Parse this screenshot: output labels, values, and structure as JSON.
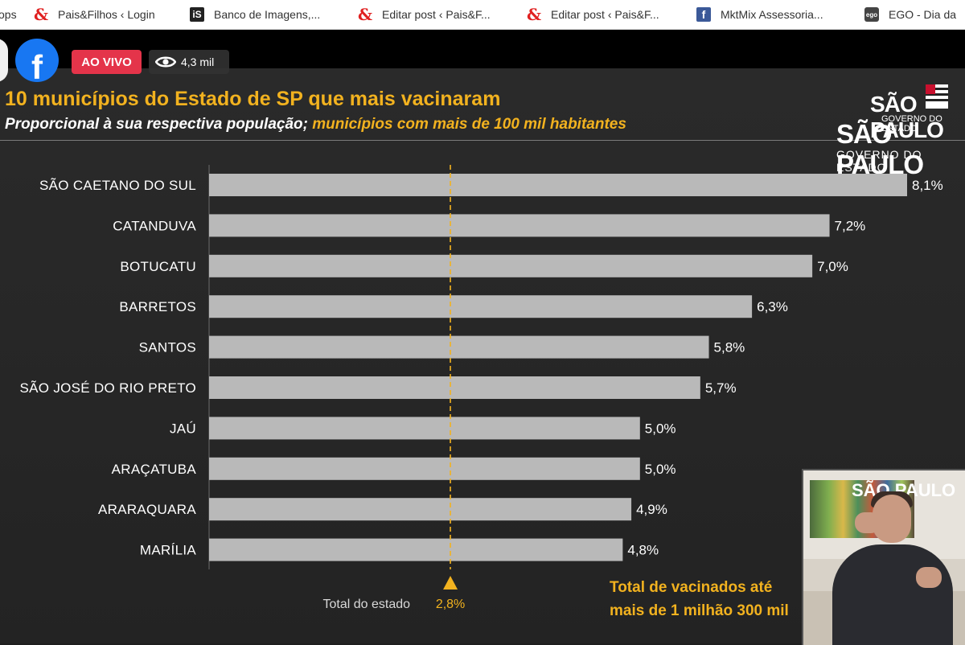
{
  "bookmarks": [
    {
      "label": "ops",
      "icon": "none"
    },
    {
      "label": "Pais&Filhos ‹ Login",
      "icon": "pais-filhos-icon"
    },
    {
      "label": "Banco de Imagens,...",
      "icon": "istock-icon"
    },
    {
      "label": "Editar post ‹ Pais&F...",
      "icon": "pais-filhos-icon"
    },
    {
      "label": "Editar post ‹ Pais&F...",
      "icon": "pais-filhos-icon"
    },
    {
      "label": "MktMix Assessoria...",
      "icon": "facebook-icon"
    },
    {
      "label": "EGO - Dia da",
      "icon": "ego-icon"
    }
  ],
  "live": {
    "badge": "AO VIVO",
    "viewers": "4,3 mil"
  },
  "slide": {
    "title": "10 municípios do Estado de SP que mais vacinaram",
    "subtitle_white": "Proporcional à sua respectiva população;",
    "subtitle_highlight": "municípios com mais de 100 mil habitantes",
    "logo_line1": "SÃO PAULO",
    "logo_line2": "GOVERNO DO ESTADO",
    "logo_line3": "SÃO PAULO",
    "logo_line4": "GOVERNO DO ESTADO",
    "total_line1": "Total de vacinados até",
    "total_line2": "mais de 1 milhão 300 mil"
  },
  "interpreter": {
    "sign": "SÃO PAULO"
  },
  "colors": {
    "accent": "#f2b21f",
    "bar": "#b9b9b9",
    "live_red": "#e4344a",
    "facebook_blue": "#1877f2"
  },
  "chart_data": {
    "type": "bar",
    "orientation": "horizontal",
    "title": "10 municípios do Estado de SP que mais vacinaram",
    "subtitle": "Proporcional à sua respectiva população; municípios com mais de 100 mil habitantes",
    "categories": [
      "SÃO CAETANO DO SUL",
      "CATANDUVA",
      "BOTUCATU",
      "BARRETOS",
      "SANTOS",
      "SÃO JOSÉ DO RIO PRETO",
      "JAÚ",
      "ARAÇATUBA",
      "ARARAQUARA",
      "MARÍLIA"
    ],
    "values": [
      8.1,
      7.2,
      7.0,
      6.3,
      5.8,
      5.7,
      5.0,
      5.0,
      4.9,
      4.8
    ],
    "value_labels": [
      "8,1%",
      "7,2%",
      "7,0%",
      "6,3%",
      "5,8%",
      "5,7%",
      "5,0%",
      "5,0%",
      "4,9%",
      "4,8%"
    ],
    "reference_line": {
      "label": "Total do estado",
      "value": 2.8,
      "value_label": "2,8%"
    },
    "xlim": [
      0,
      8.1
    ],
    "grid": false,
    "legend": "none"
  }
}
